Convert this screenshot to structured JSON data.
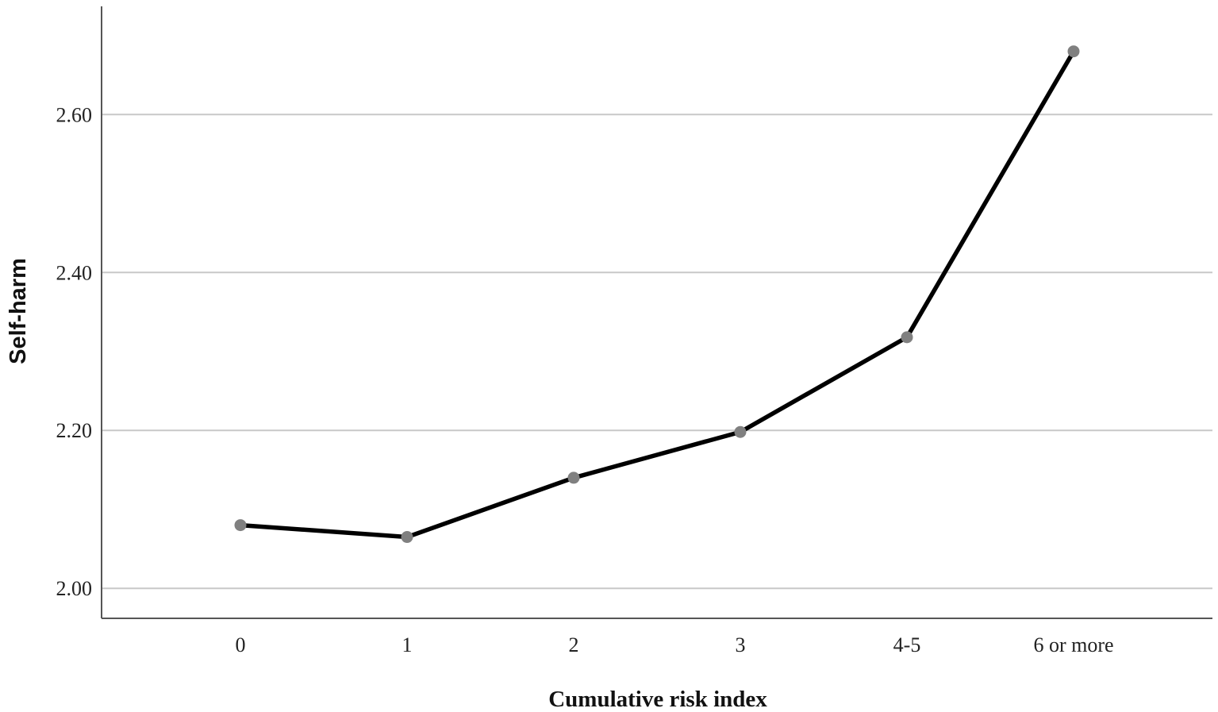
{
  "chart_data": {
    "type": "line",
    "categories": [
      "0",
      "1",
      "2",
      "3",
      "4-5",
      "6 or more"
    ],
    "series": [
      {
        "values": [
          2.08,
          2.065,
          2.14,
          2.198,
          2.318,
          2.68
        ]
      }
    ],
    "xlabel": "Cumulative risk index",
    "ylabel": "Self-harm",
    "yticks": [
      "2.00",
      "2.20",
      "2.40",
      "2.60"
    ],
    "ylim": [
      1.962,
      2.737
    ],
    "grid": "horizontal",
    "colors": {
      "line": "#000000",
      "marker": "#808080",
      "grid": "#c8c8c8",
      "axis": "#555555"
    }
  }
}
